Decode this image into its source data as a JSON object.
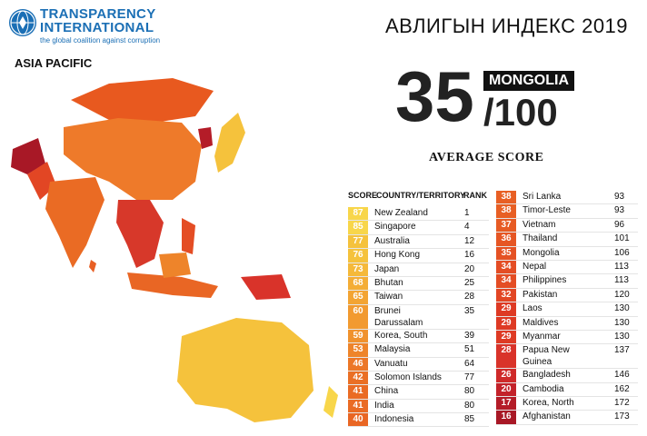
{
  "logo": {
    "line1": "TRANSPARENCY",
    "line2": "INTERNATIONAL",
    "tagline": "the global coalition against corruption"
  },
  "region": "ASIA PACIFIC",
  "title": "АВЛИГЫН ИНДЕКС 2019",
  "highlight": {
    "score": "35",
    "country": "MONGOLIA",
    "out_of": "/100",
    "caption": "AVERAGE SCORE"
  },
  "headers": {
    "score": "SCORE",
    "country": "COUNTRY/TERRITORY",
    "rank": "RANK"
  },
  "left_rows": [
    {
      "score": "87",
      "name": "New Zealand",
      "rank": "1",
      "color": "#f8d64a"
    },
    {
      "score": "85",
      "name": "Singapore",
      "rank": "4",
      "color": "#f8d64a"
    },
    {
      "score": "77",
      "name": "Australia",
      "rank": "12",
      "color": "#f5c23c"
    },
    {
      "score": "76",
      "name": "Hong Kong",
      "rank": "16",
      "color": "#f5c23c"
    },
    {
      "score": "73",
      "name": "Japan",
      "rank": "20",
      "color": "#f5b93a"
    },
    {
      "score": "68",
      "name": "Bhutan",
      "rank": "25",
      "color": "#f4ad36"
    },
    {
      "score": "65",
      "name": "Taiwan",
      "rank": "28",
      "color": "#f3a433"
    },
    {
      "score": "60",
      "name": "Brunei Darussalam",
      "rank": "35",
      "color": "#f29a30"
    },
    {
      "score": "59",
      "name": "Korea, South",
      "rank": "39",
      "color": "#f0922e"
    },
    {
      "score": "53",
      "name": "Malaysia",
      "rank": "51",
      "color": "#ee842a"
    },
    {
      "score": "46",
      "name": "Vanuatu",
      "rank": "64",
      "color": "#ec7727"
    },
    {
      "score": "42",
      "name": "Solomon Islands",
      "rank": "77",
      "color": "#ea6f25"
    },
    {
      "score": "41",
      "name": "China",
      "rank": "80",
      "color": "#ea6b24"
    },
    {
      "score": "41",
      "name": "India",
      "rank": "80",
      "color": "#ea6b24"
    },
    {
      "score": "40",
      "name": "Indonesia",
      "rank": "85",
      "color": "#e96624"
    }
  ],
  "right_rows": [
    {
      "score": "38",
      "name": "Sri Lanka",
      "rank": "93",
      "color": "#e85f24"
    },
    {
      "score": "38",
      "name": "Timor-Leste",
      "rank": "93",
      "color": "#e85f24"
    },
    {
      "score": "37",
      "name": "Vietnam",
      "rank": "96",
      "color": "#e75b24"
    },
    {
      "score": "36",
      "name": "Thailand",
      "rank": "101",
      "color": "#e65624"
    },
    {
      "score": "35",
      "name": "Mongolia",
      "rank": "106",
      "color": "#e55224"
    },
    {
      "score": "34",
      "name": "Nepal",
      "rank": "113",
      "color": "#e44d24"
    },
    {
      "score": "34",
      "name": "Philippines",
      "rank": "113",
      "color": "#e44d24"
    },
    {
      "score": "32",
      "name": "Pakistan",
      "rank": "120",
      "color": "#e24624"
    },
    {
      "score": "29",
      "name": "Laos",
      "rank": "130",
      "color": "#de3a24"
    },
    {
      "score": "29",
      "name": "Maldives",
      "rank": "130",
      "color": "#de3a24"
    },
    {
      "score": "29",
      "name": "Myanmar",
      "rank": "130",
      "color": "#de3a24"
    },
    {
      "score": "28",
      "name": "Papua New Guinea",
      "rank": "137",
      "color": "#d9332a"
    },
    {
      "score": "26",
      "name": "Bangladesh",
      "rank": "146",
      "color": "#cf2a2a"
    },
    {
      "score": "20",
      "name": "Cambodia",
      "rank": "162",
      "color": "#c3222a"
    },
    {
      "score": "17",
      "name": "Korea, North",
      "rank": "172",
      "color": "#b41c28"
    },
    {
      "score": "16",
      "name": "Afghanistan",
      "rank": "173",
      "color": "#a81826"
    }
  ]
}
